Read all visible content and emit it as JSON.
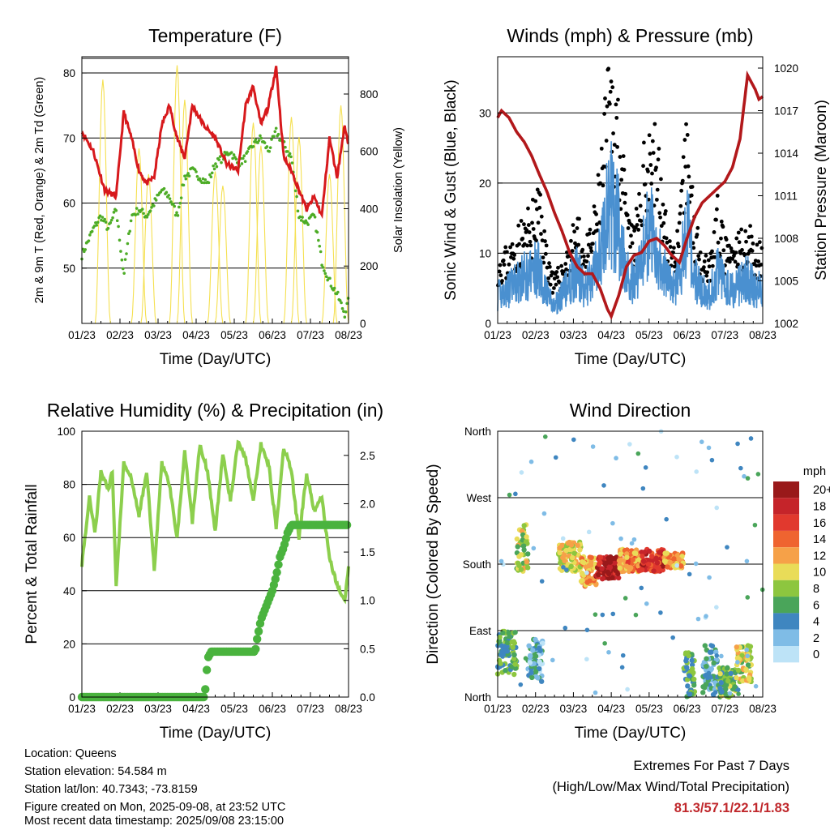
{
  "x_ticks": [
    "01/23",
    "02/23",
    "03/23",
    "04/23",
    "05/23",
    "06/23",
    "07/23",
    "08/23"
  ],
  "xlabel": "Time (Day/UTC)",
  "chart_data": [
    {
      "id": "temperature",
      "type": "line",
      "title": "Temperature (F)",
      "ylabel": "2m & 9m T (Red, Orange) & 2m Td (Green)",
      "y2label": "Solar Insolation (Yellow)",
      "ylim": [
        41.5,
        82.5
      ],
      "y_ticks": [
        50,
        60,
        70,
        80
      ],
      "y2lim": [
        0,
        930
      ],
      "y2_ticks": [
        0,
        200,
        400,
        600,
        800
      ],
      "series": [
        {
          "label": "2m T",
          "color": "#d7191c",
          "axis": "left",
          "x": [
            0,
            0.3,
            0.6,
            0.9,
            1.1,
            1.3,
            1.5,
            1.7,
            1.9,
            2.1,
            2.3,
            2.5,
            2.7,
            2.9,
            3.2,
            3.5,
            3.8,
            4.1,
            4.3,
            4.5,
            4.7,
            4.9,
            5.1,
            5.3,
            5.5,
            5.7,
            5.9,
            6.1,
            6.3,
            6.5,
            6.7,
            6.9,
            7.0
          ],
          "y": [
            71,
            68,
            62,
            61,
            74,
            70,
            65,
            63,
            64,
            72,
            75,
            70,
            67,
            75,
            72,
            70,
            66,
            65,
            75,
            78,
            72,
            75,
            81,
            67,
            65,
            62,
            59,
            61,
            58,
            70,
            64,
            72,
            69
          ]
        },
        {
          "label": "2m Td",
          "color": "#4dac26",
          "axis": "left",
          "x": [
            0,
            0.3,
            0.5,
            0.7,
            0.9,
            1.1,
            1.3,
            1.5,
            1.7,
            1.9,
            2.1,
            2.3,
            2.5,
            2.7,
            2.9,
            3.1,
            3.3,
            3.5,
            3.7,
            3.9,
            4.1,
            4.3,
            4.5,
            4.7,
            4.9,
            5.1,
            5.3,
            5.5,
            5.7,
            5.9,
            6.1,
            6.3,
            6.5,
            6.7,
            6.9,
            7.0
          ],
          "y": [
            52,
            56,
            58,
            56,
            59,
            49,
            58,
            59,
            58,
            60,
            62,
            61,
            58,
            64,
            65,
            64,
            63,
            66,
            67,
            68,
            66,
            67,
            69,
            70,
            68,
            71,
            69,
            67,
            58,
            57,
            58,
            51,
            48,
            46,
            43,
            45
          ]
        },
        {
          "label": "Solar Insolation",
          "color": "#f5e050",
          "axis": "right",
          "peaks_x": [
            0.55,
            1.5,
            1.75,
            2.5,
            2.7,
            3.5,
            3.7,
            4.5,
            4.7,
            5.5,
            5.7,
            6.5,
            6.8
          ],
          "peaks_y": [
            850,
            610,
            520,
            900,
            780,
            530,
            480,
            700,
            620,
            720,
            650,
            520,
            760
          ]
        }
      ]
    },
    {
      "id": "winds",
      "type": "scatter",
      "title": "Winds (mph) & Pressure (mb)",
      "ylabel": "Sonic Wind & Gust (Blue, Black)",
      "y2label": "Station Pressure (Maroon)",
      "ylim": [
        0,
        38
      ],
      "y_ticks": [
        0,
        10,
        20,
        30
      ],
      "y2lim": [
        1002,
        1020.8
      ],
      "y2_ticks": [
        1002,
        1005,
        1008,
        1011,
        1014,
        1017,
        1020
      ],
      "series": [
        {
          "label": "Gust",
          "color": "#000000",
          "axis": "left",
          "x": [
            0,
            0.3,
            0.6,
            0.9,
            1.1,
            1.3,
            1.5,
            1.7,
            1.9,
            2.1,
            2.3,
            2.5,
            2.7,
            2.9,
            3.0,
            3.2,
            3.4,
            3.6,
            3.8,
            4.0,
            4.2,
            4.4,
            4.6,
            4.8,
            5.0,
            5.2,
            5.4,
            5.6,
            5.8,
            6.0,
            6.2,
            6.4,
            6.6,
            6.8,
            7.0
          ],
          "y": [
            9,
            10,
            13,
            15,
            18,
            10,
            6,
            8,
            11,
            14,
            10,
            13,
            20,
            32,
            33,
            30,
            15,
            12,
            20,
            28,
            25,
            15,
            10,
            13,
            28,
            14,
            10,
            9,
            16,
            11,
            10,
            12,
            13,
            11,
            10
          ]
        },
        {
          "label": "Sonic Wind",
          "color": "#4a90d0",
          "axis": "left",
          "x": [
            0,
            0.3,
            0.6,
            0.9,
            1.1,
            1.3,
            1.5,
            1.7,
            1.9,
            2.1,
            2.3,
            2.5,
            2.7,
            2.9,
            3.0,
            3.2,
            3.4,
            3.6,
            3.8,
            4.0,
            4.2,
            4.4,
            4.6,
            4.8,
            5.0,
            5.2,
            5.4,
            5.6,
            5.8,
            6.0,
            6.2,
            6.4,
            6.6,
            6.8,
            7.0
          ],
          "y": [
            5,
            6,
            8,
            9,
            10,
            5,
            3,
            5,
            7,
            9,
            6,
            8,
            12,
            19,
            21,
            17,
            9,
            7,
            12,
            17,
            14,
            9,
            6,
            8,
            17,
            8,
            6,
            5,
            9,
            7,
            6,
            7,
            8,
            6,
            6
          ]
        },
        {
          "label": "Station Pressure",
          "color": "#b2181b",
          "axis": "right",
          "x": [
            0,
            0.1,
            0.3,
            0.5,
            0.7,
            0.9,
            1.1,
            1.3,
            1.5,
            1.7,
            1.9,
            2.1,
            2.3,
            2.5,
            2.7,
            2.9,
            3.0,
            3.2,
            3.4,
            3.6,
            3.8,
            4.0,
            4.2,
            4.4,
            4.6,
            4.8,
            5.0,
            5.2,
            5.4,
            5.6,
            5.8,
            6.0,
            6.2,
            6.4,
            6.6,
            6.8,
            6.9,
            7.0
          ],
          "y": [
            1016.5,
            1017,
            1016.5,
            1015.5,
            1014.8,
            1013.8,
            1012.5,
            1011.3,
            1009.8,
            1008.5,
            1007,
            1006,
            1005.5,
            1005.5,
            1004.5,
            1003,
            1002.5,
            1004,
            1006,
            1006.8,
            1007,
            1007.8,
            1008,
            1007.5,
            1006.8,
            1006.3,
            1008,
            1009.5,
            1010.5,
            1011,
            1011.5,
            1012,
            1013,
            1015,
            1019.5,
            1018.5,
            1017.8,
            1018
          ]
        }
      ]
    },
    {
      "id": "humidity",
      "type": "line",
      "title": "Relative Humidity (%) & Precipitation (in)",
      "ylabel": "Percent & Total Rainfall",
      "ylim": [
        0,
        100
      ],
      "y_ticks": [
        0,
        20,
        40,
        60,
        80,
        100
      ],
      "y2lim": [
        0,
        2.75
      ],
      "y2_ticks": [
        "0.0",
        "0.5",
        "1.0",
        "1.5",
        "2.0",
        "2.5"
      ],
      "series": [
        {
          "label": "Relative Humidity",
          "color": "#8ccf4d",
          "axis": "left",
          "x": [
            0,
            0.2,
            0.35,
            0.5,
            0.7,
            0.8,
            0.9,
            1.1,
            1.3,
            1.5,
            1.7,
            1.9,
            2.1,
            2.3,
            2.5,
            2.7,
            2.9,
            3.1,
            3.3,
            3.5,
            3.7,
            3.9,
            4.1,
            4.3,
            4.5,
            4.7,
            4.9,
            5.1,
            5.3,
            5.5,
            5.7,
            5.9,
            6.1,
            6.3,
            6.5,
            6.7,
            6.9,
            7.0
          ],
          "y": [
            50,
            75,
            62,
            85,
            78,
            85,
            42,
            88,
            82,
            68,
            85,
            48,
            88,
            80,
            60,
            92,
            66,
            95,
            85,
            62,
            92,
            74,
            96,
            90,
            74,
            95,
            88,
            64,
            94,
            85,
            60,
            84,
            70,
            75,
            52,
            42,
            36,
            49
          ]
        },
        {
          "label": "Total Precipitation",
          "color": "#4ab33e",
          "axis": "right",
          "x": [
            0,
            3.2,
            3.25,
            3.3,
            3.4,
            4.55,
            4.6,
            4.7,
            4.8,
            4.9,
            5.0,
            5.1,
            5.2,
            5.3,
            5.4,
            5.5,
            5.6,
            7.0
          ],
          "y": [
            0,
            0,
            0.1,
            0.4,
            0.47,
            0.47,
            0.6,
            0.8,
            0.9,
            1.0,
            1.1,
            1.25,
            1.45,
            1.55,
            1.7,
            1.78,
            1.78,
            1.78
          ]
        }
      ]
    },
    {
      "id": "direction",
      "type": "scatter",
      "title": "Wind Direction",
      "ylabel": "Direction (Colored By Speed)",
      "y_ticks": [
        "North",
        "East",
        "South",
        "West",
        "North"
      ],
      "ylim": [
        0,
        360
      ],
      "colorbar": {
        "unit": "mph",
        "labels": [
          "20+",
          "18",
          "16",
          "14",
          "12",
          "10",
          "8",
          "6",
          "4",
          "2",
          "0"
        ],
        "colors": [
          "#99191a",
          "#c5242a",
          "#e1392e",
          "#ef6430",
          "#f6a148",
          "#e9dc58",
          "#8dc63f",
          "#4aa55a",
          "#3f86c0",
          "#7fbce6",
          "#bde3f7"
        ]
      },
      "clusters": [
        {
          "x0": 0.0,
          "x1": 0.5,
          "dir0": 30,
          "dir1": 90,
          "spd": 6
        },
        {
          "x0": 0.5,
          "x1": 0.8,
          "dir0": 170,
          "dir1": 240,
          "spd": 9
        },
        {
          "x0": 0.8,
          "x1": 1.2,
          "dir0": 20,
          "dir1": 80,
          "spd": 3
        },
        {
          "x0": 1.6,
          "x1": 2.2,
          "dir0": 170,
          "dir1": 210,
          "spd": 10
        },
        {
          "x0": 2.2,
          "x1": 2.6,
          "dir0": 150,
          "dir1": 190,
          "spd": 12
        },
        {
          "x0": 2.6,
          "x1": 3.2,
          "dir0": 160,
          "dir1": 190,
          "spd": 19
        },
        {
          "x0": 3.2,
          "x1": 3.8,
          "dir0": 170,
          "dir1": 200,
          "spd": 13
        },
        {
          "x0": 3.8,
          "x1": 4.4,
          "dir0": 170,
          "dir1": 200,
          "spd": 17
        },
        {
          "x0": 4.4,
          "x1": 4.9,
          "dir0": 175,
          "dir1": 195,
          "spd": 12
        },
        {
          "x0": 4.9,
          "x1": 5.2,
          "dir0": 0,
          "dir1": 60,
          "spd": 6
        },
        {
          "x0": 5.4,
          "x1": 5.8,
          "dir0": 0,
          "dir1": 70,
          "spd": 4
        },
        {
          "x0": 5.8,
          "x1": 6.3,
          "dir0": 0,
          "dir1": 40,
          "spd": 7
        },
        {
          "x0": 6.3,
          "x1": 6.7,
          "dir0": 20,
          "dir1": 70,
          "spd": 9
        }
      ]
    }
  ],
  "footer": {
    "location": "Location: Queens",
    "elevation": "Station elevation: 54.584 m",
    "latlon": "Station lat/lon: 40.7343; -73.8159",
    "created": "Figure created on Mon, 2025-09-08, at 23:52 UTC",
    "timestamp": "Most recent data timestamp: 2025/09/08 23:15:00"
  },
  "extremes": {
    "line1": "Extremes For Past 7 Days",
    "line2": "(High/Low/Max Wind/Total Precipitation)",
    "values": "81.3/57.1/22.1/1.83"
  }
}
